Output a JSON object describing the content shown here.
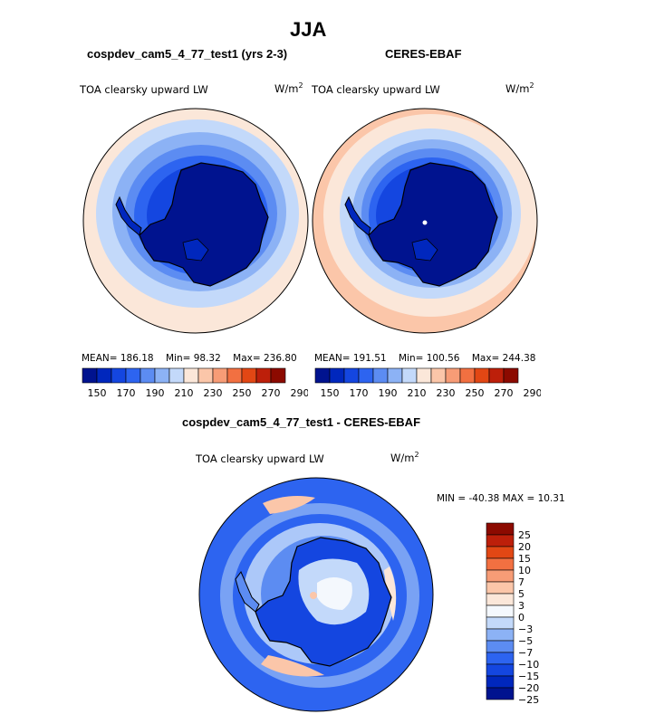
{
  "page": {
    "season_title": "JJA",
    "panels": [
      {
        "id": "model",
        "header": "cospdev_cam5_4_77_test1 (yrs 2-3)",
        "field_label": "TOA clearsky upward LW",
        "units_base": "W/m",
        "units_exp": "2",
        "stats": {
          "mean": "MEAN= 186.18",
          "min": "Min=  98.32",
          "max": "Max= 236.80"
        }
      },
      {
        "id": "obs",
        "header": "CERES-EBAF",
        "field_label": "TOA clearsky upward LW",
        "units_base": "W/m",
        "units_exp": "2",
        "stats": {
          "mean": "MEAN= 191.51",
          "min": "Min= 100.56",
          "max": "Max= 244.38"
        }
      },
      {
        "id": "diff",
        "header": "cospdev_cam5_4_77_test1 - CERES-EBAF",
        "field_label": "TOA clearsky upward LW",
        "units_base": "W/m",
        "units_exp": "2",
        "minmax": "MIN = -40.38 MAX =  10.31"
      }
    ]
  },
  "colors": {
    "abs_scale": [
      "#00138f",
      "#0027bd",
      "#1446e0",
      "#2d64f0",
      "#5c8cf2",
      "#8cb2f5",
      "#c3d9fa",
      "#fbe7d9",
      "#fbc6a9",
      "#f79c76",
      "#f27041",
      "#e24714",
      "#bd1f0a",
      "#8c0a00"
    ],
    "diff_scale": [
      "#00138f",
      "#0027bd",
      "#1446e0",
      "#2d64f0",
      "#5c8cf2",
      "#8cb2f5",
      "#c3d9fa",
      "#f4f8fd",
      "#fbe7d9",
      "#fbc6a9",
      "#f79c76",
      "#f27041",
      "#e24714",
      "#bd1f0a",
      "#8c0a00"
    ]
  },
  "chart_data": [
    {
      "type": "heatmap",
      "projection": "south polar stereographic",
      "title": "cospdev_cam5_4_77_test1 (yrs 2-3)",
      "field": "TOA clearsky upward LW",
      "units": "W/m2",
      "mean": 186.18,
      "min": 98.32,
      "max": 236.8,
      "colorbar_levels": [
        150,
        160,
        170,
        180,
        190,
        200,
        210,
        220,
        230,
        240,
        250,
        260,
        270,
        280,
        290
      ],
      "colorbar_tick_labels": [
        "150",
        "170",
        "190",
        "210",
        "230",
        "250",
        "270",
        "290"
      ]
    },
    {
      "type": "heatmap",
      "projection": "south polar stereographic",
      "title": "CERES-EBAF",
      "field": "TOA clearsky upward LW",
      "units": "W/m2",
      "mean": 191.51,
      "min": 100.56,
      "max": 244.38,
      "colorbar_levels": [
        150,
        160,
        170,
        180,
        190,
        200,
        210,
        220,
        230,
        240,
        250,
        260,
        270,
        280,
        290
      ],
      "colorbar_tick_labels": [
        "150",
        "170",
        "190",
        "210",
        "230",
        "250",
        "270",
        "290"
      ]
    },
    {
      "type": "heatmap",
      "projection": "south polar stereographic",
      "title": "cospdev_cam5_4_77_test1 - CERES-EBAF",
      "field": "TOA clearsky upward LW",
      "units": "W/m2",
      "min": -40.38,
      "max": 10.31,
      "colorbar_tick_labels": [
        "25",
        "20",
        "15",
        "10",
        "7",
        "5",
        "3",
        "0",
        "−3",
        "−5",
        "−7",
        "−10",
        "−15",
        "−20",
        "−25"
      ]
    }
  ]
}
